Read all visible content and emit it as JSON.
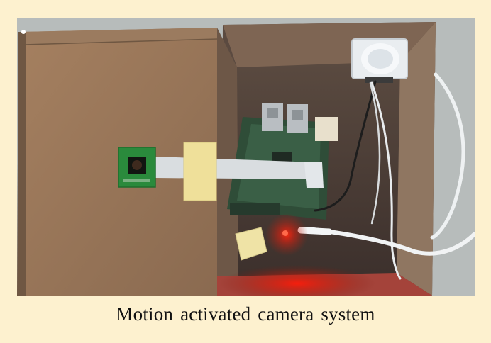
{
  "figure": {
    "caption": "Motion activated camera system",
    "background_color": "#fdf1cf",
    "photo_subject": "cardboard-box-with-raspberry-pi-camera-and-pir-sensor"
  }
}
